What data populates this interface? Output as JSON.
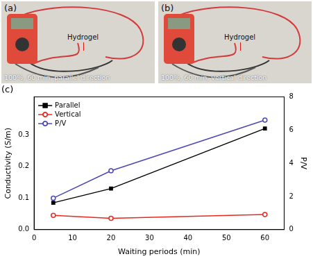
{
  "panels": [
    {
      "label": "(a)",
      "annotation": "Hydrogel",
      "caption": "100%, 60 min, parallel direction"
    },
    {
      "label": "(b)",
      "annotation": "Hydrogel",
      "caption": "100%, 60 min, vertical direction"
    }
  ],
  "chart_data": {
    "type": "line",
    "title": "(c)",
    "x_label": "Waiting periods (min)",
    "y_label": "Conductivity (S/m)",
    "y2_label": "P/V",
    "x": [
      5,
      20,
      60
    ],
    "series": [
      {
        "name": "Parallel",
        "color": "#000000",
        "marker": "square",
        "values": [
          0.085,
          0.13,
          0.32
        ]
      },
      {
        "name": "Vertical",
        "color": "#e8281e",
        "marker": "circle",
        "values": [
          0.045,
          0.036,
          0.048
        ]
      },
      {
        "name": "P/V",
        "color": "#4b48b4",
        "marker": "circle",
        "axis": "y2",
        "values": [
          1.9,
          3.55,
          6.6
        ]
      }
    ],
    "xlim": [
      0,
      65
    ],
    "xticks": [
      0,
      10,
      20,
      30,
      40,
      50,
      60
    ],
    "ylim": [
      0,
      0.42
    ],
    "yticks": [
      {
        "value": 0,
        "label": "0.0"
      },
      0.1,
      0.2,
      0.3
    ],
    "y2lim": [
      0,
      8
    ],
    "y2ticks": [
      0,
      2,
      4,
      6,
      8
    ],
    "grid": false,
    "legend": "upper left"
  }
}
